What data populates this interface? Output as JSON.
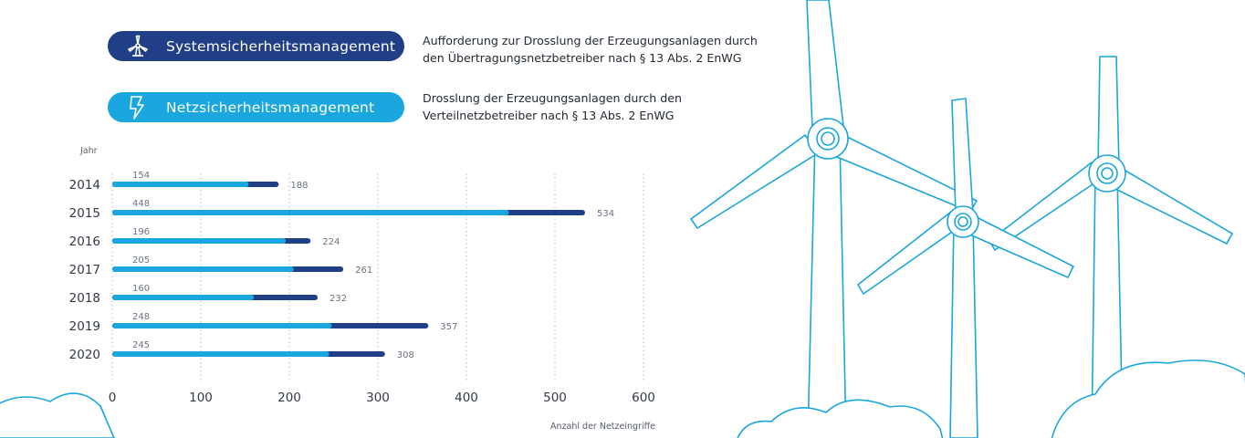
{
  "legend": {
    "system": {
      "label": "Systemsicherheitsmanagement",
      "icon": "wind-turbine-icon",
      "color": "#213f86",
      "description_line1": "Aufforderung zur Drosslung der Erzeugungsanlagen durch",
      "description_line2": "den Übertragungsnetzbetreiber nach § 13 Abs. 2 EnWG"
    },
    "network": {
      "label": "Netzsicherheitsmanagement",
      "icon": "lightning-bolt-icon",
      "color": "#1aa6de",
      "description_line1": "Drosslung der Erzeugungsanlagen durch den",
      "description_line2": "Verteilnetzbetreiber nach § 13 Abs. 2 EnWG"
    }
  },
  "chart_data": {
    "type": "bar",
    "orientation": "horizontal",
    "stacked": true,
    "ylabel": "Jahr",
    "xlabel": "Anzahl der Netzeingriffe",
    "categories": [
      "2014",
      "2015",
      "2016",
      "2017",
      "2018",
      "2019",
      "2020"
    ],
    "series": [
      {
        "name": "Netzsicherheitsmanagement",
        "color": "#1aa6de",
        "values": [
          154,
          448,
          196,
          205,
          160,
          248,
          245
        ]
      },
      {
        "name": "Systemsicherheitsmanagement",
        "color": "#213f86",
        "values": [
          34,
          86,
          28,
          56,
          72,
          109,
          63
        ]
      }
    ],
    "totals": [
      188,
      534,
      224,
      261,
      232,
      357,
      308
    ],
    "xlim": [
      0,
      600
    ],
    "xticks": [
      0,
      100,
      200,
      300,
      400,
      500,
      600
    ],
    "grid": "vertical dotted"
  },
  "illustration": {
    "subject": "wind turbines and clouds",
    "icon": "wind-turbine-icon",
    "stroke_color": "#1aa6de"
  }
}
